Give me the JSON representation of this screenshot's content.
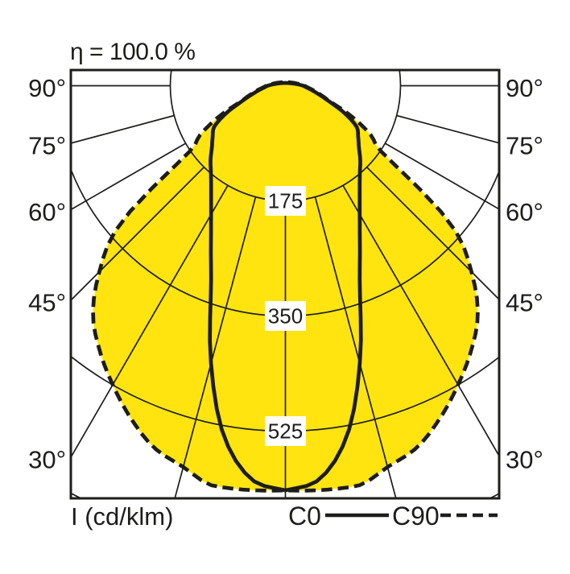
{
  "title": "η = 100.0 %",
  "axis_unit_label": "I (cd/klm)",
  "legend": {
    "c0_label": "C0",
    "c90_label": "C90"
  },
  "colors": {
    "fill_yellow": "#FFE40F",
    "line_black": "#1D1D1B",
    "label_background": "#FFFFFF",
    "page_background": "#FFFFFF"
  },
  "chart_data": {
    "type": "polar-photometric-curve",
    "title": "η = 100.0 %",
    "efficiency_percent": 100.0,
    "unit": "cd/klm",
    "unit_label": "I (cd/klm)",
    "symmetric_mirror": true,
    "intensity_rings": [
      {
        "value": 175,
        "label": "175"
      },
      {
        "value": 350,
        "label": "350"
      },
      {
        "value": 525,
        "label": "525"
      },
      {
        "value": 700,
        "label": null
      }
    ],
    "gamma_grid_deg": [
      15,
      30,
      45,
      60,
      75,
      90
    ],
    "angle_label_rows": [
      {
        "deg": 90,
        "label": "90°"
      },
      {
        "deg": 75,
        "label": "75°"
      },
      {
        "deg": 60,
        "label": "60°"
      },
      {
        "deg": 45,
        "label": "45°"
      },
      {
        "deg": 30,
        "label": "30°"
      }
    ],
    "series": [
      {
        "name": "C0",
        "style": "solid",
        "gamma_deg": [
          0,
          5,
          10,
          15,
          20,
          25,
          30,
          35,
          40,
          45,
          50,
          55,
          60,
          65,
          70,
          75,
          80,
          85,
          90
        ],
        "intensity_cd_per_klm": [
          615,
          600,
          540,
          437,
          331,
          268,
          226,
          197,
          176,
          161,
          146,
          135,
          125,
          100,
          72,
          54,
          42,
          33,
          27
        ]
      },
      {
        "name": "C90",
        "style": "dashed",
        "gamma_deg": [
          0,
          5,
          10,
          15,
          20,
          25,
          30,
          35,
          40,
          45,
          50,
          55,
          60,
          65,
          70,
          75,
          80,
          85,
          90
        ],
        "intensity_cd_per_klm": [
          615,
          617,
          618,
          600,
          585,
          557,
          525,
          492,
          455,
          400,
          330,
          185,
          150,
          112,
          75,
          57,
          45,
          35,
          29
        ]
      }
    ]
  }
}
